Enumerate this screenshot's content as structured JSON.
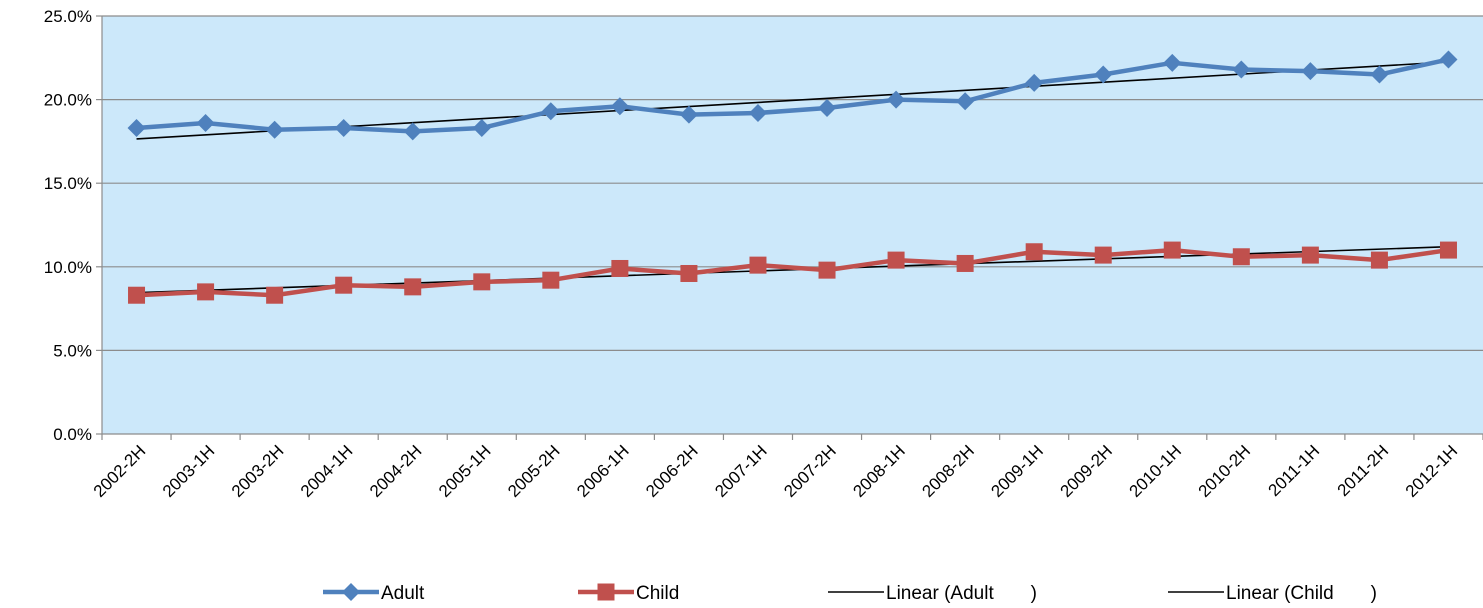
{
  "chart_data": {
    "type": "line",
    "title": "",
    "xlabel": "",
    "ylabel": "",
    "ylim": [
      0,
      25
    ],
    "y_ticks": [
      "0.0%",
      "5.0%",
      "10.0%",
      "15.0%",
      "20.0%",
      "25.0%"
    ],
    "y_tick_values": [
      0,
      5,
      10,
      15,
      20,
      25
    ],
    "grid": "horizontal",
    "legend_position": "bottom",
    "plot_background": "#CCE8FA",
    "categories": [
      "2002-2H",
      "2003-1H",
      "2003-2H",
      "2004-1H",
      "2004-2H",
      "2005-1H",
      "2005-2H",
      "2006-1H",
      "2006-2H",
      "2007-1H",
      "2007-2H",
      "2008-1H",
      "2008-2H",
      "2009-1H",
      "2009-2H",
      "2010-1H",
      "2010-2H",
      "2011-1H",
      "2011-2H",
      "2012-1H"
    ],
    "series": [
      {
        "name": "Adult",
        "color": "#4F81BD",
        "marker": "diamond",
        "values": [
          18.3,
          18.6,
          18.2,
          18.3,
          18.1,
          18.3,
          19.3,
          19.6,
          19.1,
          19.2,
          19.5,
          20.0,
          19.9,
          21.0,
          21.5,
          22.2,
          21.8,
          21.7,
          21.5,
          22.4
        ]
      },
      {
        "name": "Child",
        "color": "#C0504D",
        "marker": "square",
        "values": [
          8.3,
          8.5,
          8.3,
          8.9,
          8.8,
          9.1,
          9.2,
          9.9,
          9.6,
          10.1,
          9.8,
          10.4,
          10.2,
          10.9,
          10.7,
          11.0,
          10.6,
          10.7,
          10.4,
          11.0
        ]
      }
    ],
    "trendlines": [
      {
        "name": "Linear (Adult       )",
        "color": "#000000",
        "start": 17.65,
        "end": 22.25
      },
      {
        "name": "Linear (Child       )",
        "color": "#000000",
        "start": 8.45,
        "end": 11.2
      }
    ]
  }
}
